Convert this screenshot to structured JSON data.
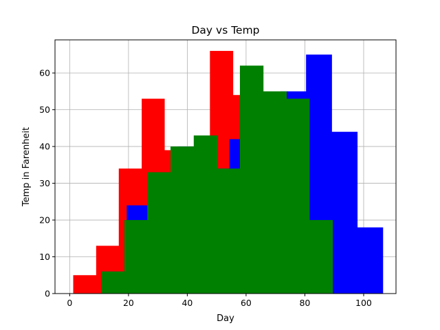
{
  "chart_data": {
    "type": "bar",
    "title": "Day vs Temp",
    "xlabel": "Day",
    "ylabel": "Temp in Farenheit",
    "xlim": [
      -5,
      111
    ],
    "ylim": [
      0,
      69
    ],
    "xticks": [
      0,
      20,
      40,
      60,
      80,
      100
    ],
    "yticks": [
      0,
      10,
      20,
      30,
      40,
      50,
      60
    ],
    "grid": true,
    "colors": {
      "red": "#ff0000",
      "blue": "#0000ff",
      "green": "#008000"
    },
    "series": [
      {
        "color": "red",
        "bins": [
          {
            "x0": 1.2,
            "x1": 9.0,
            "value": 5
          },
          {
            "x0": 9.0,
            "x1": 16.7,
            "value": 13
          },
          {
            "x0": 16.7,
            "x1": 24.5,
            "value": 34
          },
          {
            "x0": 24.5,
            "x1": 32.2,
            "value": 53
          },
          {
            "x0": 32.2,
            "x1": 40.0,
            "value": 39
          },
          {
            "x0": 40.0,
            "x1": 47.7,
            "value": 40
          },
          {
            "x0": 47.7,
            "x1": 55.5,
            "value": 66
          },
          {
            "x0": 55.5,
            "x1": 63.2,
            "value": 54
          }
        ]
      },
      {
        "color": "blue",
        "bins": [
          {
            "x0": 10.7,
            "x1": 19.4,
            "value": 6
          },
          {
            "x0": 19.4,
            "x1": 28.1,
            "value": 24
          },
          {
            "x0": 28.1,
            "x1": 36.8,
            "value": 33
          },
          {
            "x0": 36.8,
            "x1": 45.5,
            "value": 40
          },
          {
            "x0": 45.5,
            "x1": 54.3,
            "value": 34
          },
          {
            "x0": 54.3,
            "x1": 63.0,
            "value": 42
          },
          {
            "x0": 63.0,
            "x1": 71.7,
            "value": 53
          },
          {
            "x0": 71.7,
            "x1": 80.4,
            "value": 55
          },
          {
            "x0": 80.4,
            "x1": 89.1,
            "value": 65
          },
          {
            "x0": 89.1,
            "x1": 97.8,
            "value": 44
          },
          {
            "x0": 97.8,
            "x1": 106.5,
            "value": 18
          }
        ]
      },
      {
        "color": "green",
        "bins": [
          {
            "x0": 10.7,
            "x1": 18.6,
            "value": 6
          },
          {
            "x0": 18.6,
            "x1": 26.4,
            "value": 20
          },
          {
            "x0": 26.4,
            "x1": 34.3,
            "value": 33
          },
          {
            "x0": 34.3,
            "x1": 42.2,
            "value": 40
          },
          {
            "x0": 42.2,
            "x1": 50.1,
            "value": 43
          },
          {
            "x0": 50.1,
            "x1": 57.9,
            "value": 34
          },
          {
            "x0": 57.9,
            "x1": 65.8,
            "value": 62
          },
          {
            "x0": 65.8,
            "x1": 73.7,
            "value": 55
          },
          {
            "x0": 73.7,
            "x1": 81.5,
            "value": 53
          },
          {
            "x0": 81.5,
            "x1": 89.4,
            "value": 20
          }
        ]
      }
    ]
  }
}
